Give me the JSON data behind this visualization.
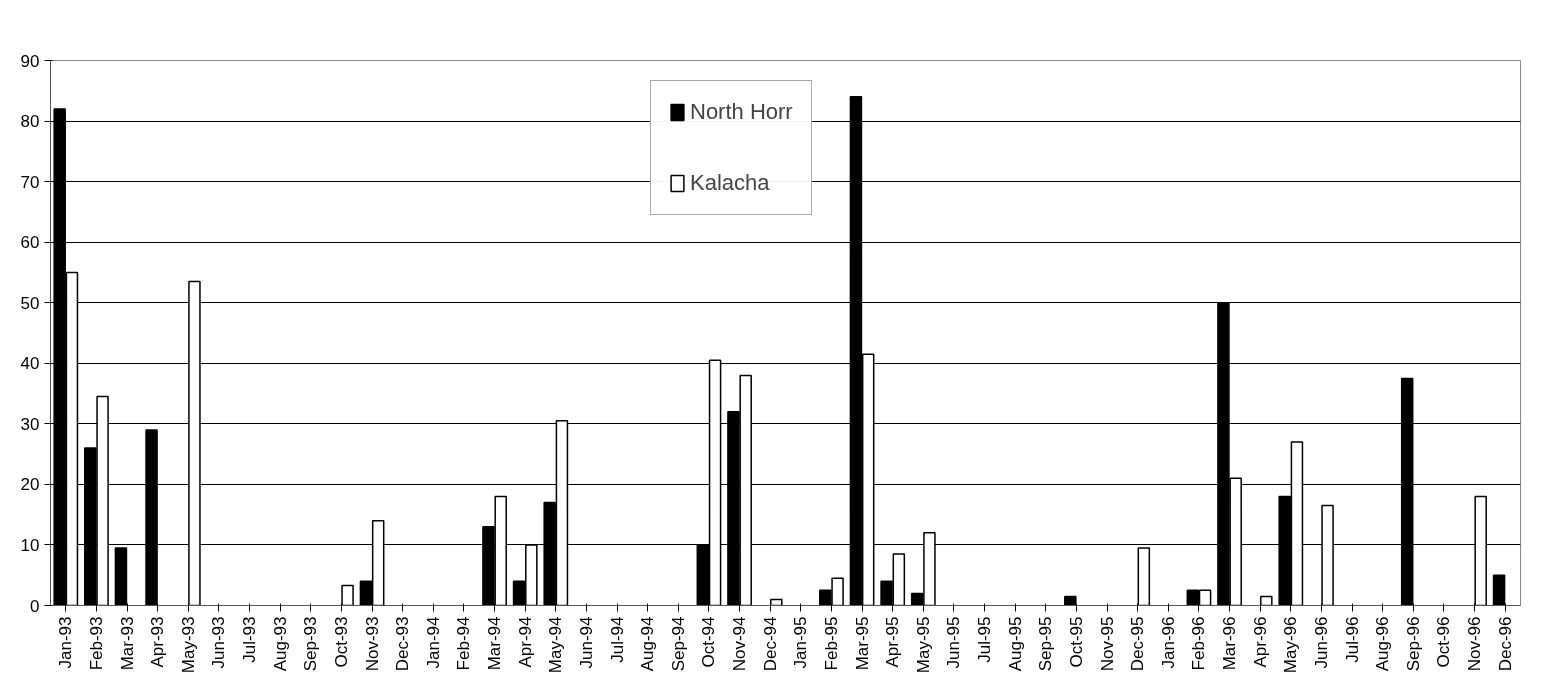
{
  "chart_data": {
    "type": "bar",
    "categories": [
      "Jan-93",
      "Feb-93",
      "Mar-93",
      "Apr-93",
      "May-93",
      "Jun-93",
      "Jul-93",
      "Aug-93",
      "Sep-93",
      "Oct-93",
      "Nov-93",
      "Dec-93",
      "Jan-94",
      "Feb-94",
      "Mar-94",
      "Apr-94",
      "May-94",
      "Jun-94",
      "Jul-94",
      "Aug-94",
      "Sep-94",
      "Oct-94",
      "Nov-94",
      "Dec-94",
      "Jan-95",
      "Feb-95",
      "Mar-95",
      "Apr-95",
      "May-95",
      "Jun-95",
      "Jul-95",
      "Aug-95",
      "Sep-95",
      "Oct-95",
      "Nov-95",
      "Dec-95",
      "Jan-96",
      "Feb-96",
      "Mar-96",
      "Apr-96",
      "May-96",
      "Jun-96",
      "Jul-96",
      "Aug-96",
      "Sep-96",
      "Oct-96",
      "Nov-96",
      "Dec-96"
    ],
    "series": [
      {
        "name": "North Horr",
        "color": "#000000",
        "values": [
          82,
          26,
          9.5,
          29,
          null,
          null,
          null,
          null,
          null,
          null,
          4,
          null,
          null,
          null,
          13,
          4,
          17,
          null,
          null,
          null,
          null,
          10,
          32,
          null,
          null,
          2.5,
          84,
          4,
          2,
          null,
          null,
          null,
          null,
          1.5,
          null,
          null,
          null,
          2.5,
          50,
          null,
          18,
          null,
          null,
          null,
          37.5,
          null,
          null,
          5
        ]
      },
      {
        "name": "Kalacha",
        "color": "#ffffff",
        "values": [
          55,
          34.5,
          null,
          null,
          53.5,
          null,
          null,
          null,
          null,
          3.3,
          14,
          null,
          null,
          null,
          18,
          10,
          30.5,
          null,
          null,
          null,
          null,
          40.5,
          38,
          1,
          null,
          4.5,
          41.5,
          8.5,
          12,
          null,
          null,
          null,
          null,
          null,
          null,
          9.5,
          null,
          2.5,
          21,
          1.5,
          27,
          16.5,
          null,
          null,
          null,
          null,
          18,
          null
        ]
      }
    ],
    "ylim": [
      0,
      90
    ],
    "yticks": [
      0,
      10,
      20,
      30,
      40,
      50,
      60,
      70,
      80,
      90
    ],
    "grid": "y",
    "legend": "top"
  }
}
